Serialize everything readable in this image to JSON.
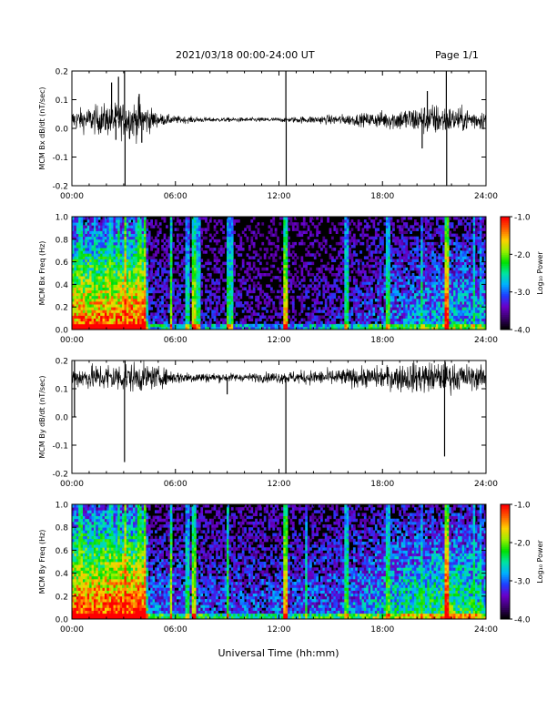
{
  "header": {
    "title": "2021/03/18  00:00-24:00 UT",
    "page": "Page 1/1"
  },
  "xlabel": "Universal Time (hh:mm)",
  "colors": {
    "trace": "#000000",
    "spectrogram_background": "#000000",
    "colormap": [
      "#000000",
      "#3a006b",
      "#6a00c8",
      "#1f3cff",
      "#00b0ff",
      "#00e6a0",
      "#00e000",
      "#9cf000",
      "#ffd000",
      "#ff6000",
      "#ff0000"
    ]
  },
  "chart_data": [
    {
      "type": "line",
      "ylabel": "MCM Bx dB/dt (nT/sec)",
      "xlim": [
        0,
        24
      ],
      "ylim": [
        -0.2,
        0.2
      ],
      "xticks": [
        "00:00",
        "06:00",
        "12:00",
        "18:00",
        "24:00"
      ],
      "yticks": [
        "-0.2",
        "-0.1",
        "0.0",
        "0.1",
        "0.2"
      ],
      "baseline": 0.03,
      "noise_envelope": [
        {
          "x": 0,
          "amp": 0.03
        },
        {
          "x": 2,
          "amp": 0.05
        },
        {
          "x": 4,
          "amp": 0.06
        },
        {
          "x": 5,
          "amp": 0.02
        },
        {
          "x": 6,
          "amp": 0.012
        },
        {
          "x": 8,
          "amp": 0.007
        },
        {
          "x": 12,
          "amp": 0.007
        },
        {
          "x": 14,
          "amp": 0.012
        },
        {
          "x": 17,
          "amp": 0.02
        },
        {
          "x": 19,
          "amp": 0.035
        },
        {
          "x": 21,
          "amp": 0.05
        },
        {
          "x": 22,
          "amp": 0.04
        },
        {
          "x": 24,
          "amp": 0.03
        }
      ],
      "spikes": [
        {
          "x": 2.3,
          "y": 0.16
        },
        {
          "x": 2.55,
          "y": -0.04
        },
        {
          "x": 2.7,
          "y": 0.18
        },
        {
          "x": 3.05,
          "y": 0.2
        },
        {
          "x": 3.08,
          "y": -0.2
        },
        {
          "x": 3.9,
          "y": 0.12
        },
        {
          "x": 4.05,
          "y": -0.05
        },
        {
          "x": 12.4,
          "y": 0.2
        },
        {
          "x": 12.42,
          "y": -0.2
        },
        {
          "x": 20.3,
          "y": -0.07
        },
        {
          "x": 20.6,
          "y": 0.13
        },
        {
          "x": 21.7,
          "y": 0.2
        },
        {
          "x": 21.72,
          "y": -0.2
        }
      ]
    },
    {
      "type": "heatmap",
      "ylabel": "MCM Bx Freq (Hz)",
      "colorbar_label": "Log₁₀ Power",
      "xlim": [
        0,
        24
      ],
      "ylim": [
        0,
        1
      ],
      "zlim": [
        -4,
        -1
      ],
      "xticks": [
        "00:00",
        "06:00",
        "12:00",
        "18:00",
        "24:00"
      ],
      "yticks": [
        "0.0",
        "0.2",
        "0.4",
        "0.6",
        "0.8",
        "1.0"
      ],
      "cticks": [
        "-1.0",
        "-2.0",
        "-3.0",
        "-4.0"
      ],
      "activity": [
        {
          "x": 0,
          "level": 0.8
        },
        {
          "x": 4.3,
          "level": 0.85
        },
        {
          "x": 4.4,
          "level": 0.2
        },
        {
          "x": 8,
          "level": 0.15
        },
        {
          "x": 12,
          "level": 0.1
        },
        {
          "x": 16,
          "level": 0.18
        },
        {
          "x": 19,
          "level": 0.3
        },
        {
          "x": 22,
          "level": 0.4
        },
        {
          "x": 24,
          "level": 0.35
        }
      ],
      "bursts": [
        {
          "x": 0.5,
          "strength": 0.7
        },
        {
          "x": 1.3,
          "strength": 0.6
        },
        {
          "x": 2.3,
          "strength": 0.7
        },
        {
          "x": 2.7,
          "strength": 0.75
        },
        {
          "x": 3.1,
          "strength": 1.0
        },
        {
          "x": 3.9,
          "strength": 0.85
        },
        {
          "x": 4.2,
          "strength": 0.9
        },
        {
          "x": 5.75,
          "strength": 0.7
        },
        {
          "x": 6.7,
          "strength": 0.5
        },
        {
          "x": 7.1,
          "strength": 0.75
        },
        {
          "x": 7.35,
          "strength": 0.55
        },
        {
          "x": 9.0,
          "strength": 0.6
        },
        {
          "x": 9.2,
          "strength": 0.55
        },
        {
          "x": 12.4,
          "strength": 0.8
        },
        {
          "x": 15.9,
          "strength": 0.55
        },
        {
          "x": 18.3,
          "strength": 0.6
        },
        {
          "x": 20.3,
          "strength": 0.55
        },
        {
          "x": 21.7,
          "strength": 0.95
        },
        {
          "x": 23.3,
          "strength": 0.55
        },
        {
          "x": 23.7,
          "strength": 0.5
        }
      ]
    },
    {
      "type": "line",
      "ylabel": "MCM By dB/dt (nT/sec)",
      "xlim": [
        0,
        24
      ],
      "ylim": [
        -0.2,
        0.2
      ],
      "xticks": [
        "00:00",
        "06:00",
        "12:00",
        "18:00",
        "24:00"
      ],
      "yticks": [
        "-0.2",
        "-0.1",
        "0.0",
        "0.1",
        "0.2"
      ],
      "baseline": 0.14,
      "noise_envelope": [
        {
          "x": 0,
          "amp": 0.03
        },
        {
          "x": 2,
          "amp": 0.045
        },
        {
          "x": 4,
          "amp": 0.045
        },
        {
          "x": 6,
          "amp": 0.02
        },
        {
          "x": 8,
          "amp": 0.015
        },
        {
          "x": 10,
          "amp": 0.012
        },
        {
          "x": 12,
          "amp": 0.018
        },
        {
          "x": 15,
          "amp": 0.025
        },
        {
          "x": 18,
          "amp": 0.035
        },
        {
          "x": 20,
          "amp": 0.05
        },
        {
          "x": 22,
          "amp": 0.045
        },
        {
          "x": 24,
          "amp": 0.035
        }
      ],
      "spikes": [
        {
          "x": 0.15,
          "y": 0.0
        },
        {
          "x": 0.15,
          "y": 0.2
        },
        {
          "x": 3.05,
          "y": -0.16
        },
        {
          "x": 3.08,
          "y": 0.2
        },
        {
          "x": 9.0,
          "y": 0.08
        },
        {
          "x": 12.4,
          "y": -0.2
        },
        {
          "x": 21.6,
          "y": -0.14
        },
        {
          "x": 21.62,
          "y": 0.2
        }
      ]
    },
    {
      "type": "heatmap",
      "ylabel": "MCM By Freq (Hz)",
      "colorbar_label": "Log₁₀ Power",
      "xlim": [
        0,
        24
      ],
      "ylim": [
        0,
        1
      ],
      "zlim": [
        -4,
        -1
      ],
      "xticks": [
        "00:00",
        "06:00",
        "12:00",
        "18:00",
        "24:00"
      ],
      "yticks": [
        "0.0",
        "0.2",
        "0.4",
        "0.6",
        "0.8",
        "1.0"
      ],
      "cticks": [
        "-1.0",
        "-2.0",
        "-3.0",
        "-4.0"
      ],
      "activity": [
        {
          "x": 0,
          "level": 0.85
        },
        {
          "x": 4.3,
          "level": 0.9
        },
        {
          "x": 4.4,
          "level": 0.3
        },
        {
          "x": 8,
          "level": 0.25
        },
        {
          "x": 12,
          "level": 0.25
        },
        {
          "x": 16,
          "level": 0.3
        },
        {
          "x": 19,
          "level": 0.45
        },
        {
          "x": 22,
          "level": 0.55
        },
        {
          "x": 24,
          "level": 0.45
        }
      ],
      "bursts": [
        {
          "x": 0.5,
          "strength": 0.8
        },
        {
          "x": 1.3,
          "strength": 0.65
        },
        {
          "x": 2.3,
          "strength": 0.7
        },
        {
          "x": 2.7,
          "strength": 0.8
        },
        {
          "x": 3.1,
          "strength": 1.0
        },
        {
          "x": 3.9,
          "strength": 0.85
        },
        {
          "x": 4.2,
          "strength": 0.95
        },
        {
          "x": 5.75,
          "strength": 0.75
        },
        {
          "x": 6.7,
          "strength": 0.55
        },
        {
          "x": 7.1,
          "strength": 0.75
        },
        {
          "x": 9.0,
          "strength": 0.65
        },
        {
          "x": 12.4,
          "strength": 0.85
        },
        {
          "x": 13.6,
          "strength": 0.55
        },
        {
          "x": 15.9,
          "strength": 0.6
        },
        {
          "x": 18.3,
          "strength": 0.65
        },
        {
          "x": 20.3,
          "strength": 0.6
        },
        {
          "x": 21.7,
          "strength": 1.0
        },
        {
          "x": 23.3,
          "strength": 0.6
        },
        {
          "x": 23.7,
          "strength": 0.55
        }
      ]
    }
  ]
}
